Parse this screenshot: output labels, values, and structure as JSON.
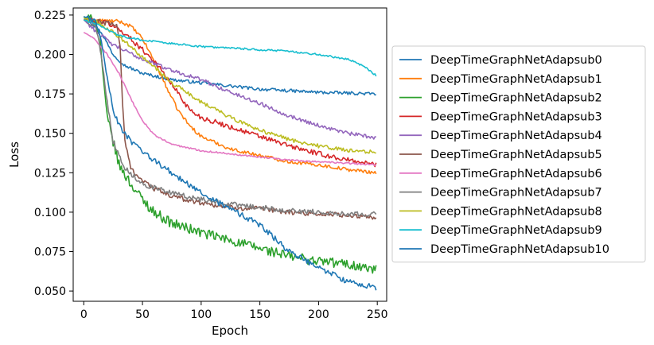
{
  "chart_data": {
    "type": "line",
    "title": "",
    "xlabel": "Epoch",
    "ylabel": "Loss",
    "xlim": [
      -9,
      258
    ],
    "ylim": [
      0.0435,
      0.2295
    ],
    "xticks": [
      0,
      50,
      100,
      150,
      200,
      250
    ],
    "yticks": [
      0.05,
      0.075,
      0.1,
      0.125,
      0.15,
      0.175,
      0.2,
      0.225
    ],
    "ytick_labels": [
      "0.050",
      "0.075",
      "0.100",
      "0.125",
      "0.150",
      "0.175",
      "0.200",
      "0.225"
    ],
    "grid": false,
    "legend_position": "outside-right",
    "n_epochs": 250,
    "series": [
      {
        "name": "DeepTimeGraphNetAdapsub0",
        "color": "#1f77b4",
        "noise": 0.001,
        "keypoints": [
          [
            0,
            0.224
          ],
          [
            5,
            0.221
          ],
          [
            15,
            0.214
          ],
          [
            25,
            0.2
          ],
          [
            35,
            0.193
          ],
          [
            50,
            0.188
          ],
          [
            75,
            0.184
          ],
          [
            100,
            0.182
          ],
          [
            150,
            0.178
          ],
          [
            200,
            0.176
          ],
          [
            250,
            0.175
          ]
        ]
      },
      {
        "name": "DeepTimeGraphNetAdapsub1",
        "color": "#ff7f0e",
        "noise": 0.0011,
        "keypoints": [
          [
            0,
            0.222
          ],
          [
            30,
            0.221
          ],
          [
            40,
            0.218
          ],
          [
            50,
            0.21
          ],
          [
            60,
            0.196
          ],
          [
            70,
            0.18
          ],
          [
            80,
            0.165
          ],
          [
            90,
            0.155
          ],
          [
            100,
            0.148
          ],
          [
            125,
            0.14
          ],
          [
            150,
            0.136
          ],
          [
            175,
            0.132
          ],
          [
            200,
            0.13
          ],
          [
            225,
            0.127
          ],
          [
            250,
            0.125
          ]
        ]
      },
      {
        "name": "DeepTimeGraphNetAdapsub2",
        "color": "#2ca02c",
        "noise": 0.0032,
        "keypoints": [
          [
            0,
            0.224
          ],
          [
            10,
            0.221
          ],
          [
            14,
            0.21
          ],
          [
            17,
            0.18
          ],
          [
            20,
            0.16
          ],
          [
            25,
            0.145
          ],
          [
            30,
            0.13
          ],
          [
            40,
            0.118
          ],
          [
            50,
            0.108
          ],
          [
            60,
            0.1
          ],
          [
            75,
            0.093
          ],
          [
            100,
            0.087
          ],
          [
            125,
            0.082
          ],
          [
            150,
            0.077
          ],
          [
            175,
            0.072
          ],
          [
            200,
            0.069
          ],
          [
            225,
            0.067
          ],
          [
            250,
            0.063
          ]
        ]
      },
      {
        "name": "DeepTimeGraphNetAdapsub3",
        "color": "#d62728",
        "noise": 0.0016,
        "keypoints": [
          [
            0,
            0.222
          ],
          [
            20,
            0.22
          ],
          [
            30,
            0.216
          ],
          [
            40,
            0.21
          ],
          [
            50,
            0.203
          ],
          [
            60,
            0.196
          ],
          [
            70,
            0.186
          ],
          [
            80,
            0.176
          ],
          [
            90,
            0.165
          ],
          [
            100,
            0.16
          ],
          [
            125,
            0.154
          ],
          [
            150,
            0.148
          ],
          [
            175,
            0.142
          ],
          [
            200,
            0.137
          ],
          [
            225,
            0.133
          ],
          [
            250,
            0.13
          ]
        ]
      },
      {
        "name": "DeepTimeGraphNetAdapsub4",
        "color": "#9467bd",
        "noise": 0.0012,
        "keypoints": [
          [
            0,
            0.222
          ],
          [
            10,
            0.215
          ],
          [
            25,
            0.206
          ],
          [
            50,
            0.197
          ],
          [
            75,
            0.19
          ],
          [
            100,
            0.184
          ],
          [
            125,
            0.176
          ],
          [
            150,
            0.169
          ],
          [
            175,
            0.161
          ],
          [
            200,
            0.155
          ],
          [
            225,
            0.15
          ],
          [
            250,
            0.147
          ]
        ]
      },
      {
        "name": "DeepTimeGraphNetAdapsub5",
        "color": "#8c564b",
        "noise": 0.0016,
        "keypoints": [
          [
            0,
            0.222
          ],
          [
            28,
            0.219
          ],
          [
            31,
            0.205
          ],
          [
            33,
            0.17
          ],
          [
            35,
            0.145
          ],
          [
            40,
            0.128
          ],
          [
            50,
            0.12
          ],
          [
            60,
            0.115
          ],
          [
            75,
            0.11
          ],
          [
            100,
            0.106
          ],
          [
            125,
            0.103
          ],
          [
            150,
            0.102
          ],
          [
            175,
            0.1
          ],
          [
            200,
            0.099
          ],
          [
            225,
            0.098
          ],
          [
            250,
            0.096
          ]
        ]
      },
      {
        "name": "DeepTimeGraphNetAdapsub6",
        "color": "#e377c2",
        "noise": 0.0005,
        "keypoints": [
          [
            0,
            0.214
          ],
          [
            5,
            0.212
          ],
          [
            10,
            0.209
          ],
          [
            20,
            0.2
          ],
          [
            30,
            0.188
          ],
          [
            40,
            0.172
          ],
          [
            50,
            0.158
          ],
          [
            60,
            0.149
          ],
          [
            75,
            0.143
          ],
          [
            100,
            0.139
          ],
          [
            125,
            0.137
          ],
          [
            150,
            0.135
          ],
          [
            175,
            0.133
          ],
          [
            200,
            0.132
          ],
          [
            225,
            0.131
          ],
          [
            250,
            0.13
          ]
        ]
      },
      {
        "name": "DeepTimeGraphNetAdapsub7",
        "color": "#7f7f7f",
        "noise": 0.0016,
        "keypoints": [
          [
            0,
            0.222
          ],
          [
            10,
            0.218
          ],
          [
            15,
            0.2
          ],
          [
            20,
            0.17
          ],
          [
            25,
            0.145
          ],
          [
            35,
            0.128
          ],
          [
            50,
            0.118
          ],
          [
            75,
            0.112
          ],
          [
            100,
            0.108
          ],
          [
            125,
            0.105
          ],
          [
            150,
            0.103
          ],
          [
            175,
            0.101
          ],
          [
            200,
            0.1
          ],
          [
            225,
            0.099
          ],
          [
            250,
            0.099
          ]
        ]
      },
      {
        "name": "DeepTimeGraphNetAdapsub8",
        "color": "#bcbd22",
        "noise": 0.0012,
        "keypoints": [
          [
            0,
            0.223
          ],
          [
            10,
            0.221
          ],
          [
            25,
            0.214
          ],
          [
            40,
            0.205
          ],
          [
            50,
            0.198
          ],
          [
            60,
            0.192
          ],
          [
            75,
            0.182
          ],
          [
            100,
            0.17
          ],
          [
            125,
            0.16
          ],
          [
            150,
            0.152
          ],
          [
            175,
            0.146
          ],
          [
            200,
            0.142
          ],
          [
            225,
            0.139
          ],
          [
            250,
            0.138
          ]
        ]
      },
      {
        "name": "DeepTimeGraphNetAdapsub9",
        "color": "#17becf",
        "noise": 0.0006,
        "keypoints": [
          [
            0,
            0.222
          ],
          [
            15,
            0.218
          ],
          [
            30,
            0.212
          ],
          [
            50,
            0.209
          ],
          [
            75,
            0.207
          ],
          [
            100,
            0.205
          ],
          [
            125,
            0.204
          ],
          [
            150,
            0.203
          ],
          [
            175,
            0.202
          ],
          [
            200,
            0.2
          ],
          [
            225,
            0.197
          ],
          [
            240,
            0.192
          ],
          [
            250,
            0.186
          ]
        ]
      },
      {
        "name": "DeepTimeGraphNetAdapsub10",
        "color": "#1f77b4",
        "noise": 0.0018,
        "keypoints": [
          [
            0,
            0.224
          ],
          [
            10,
            0.221
          ],
          [
            15,
            0.21
          ],
          [
            20,
            0.185
          ],
          [
            25,
            0.165
          ],
          [
            30,
            0.155
          ],
          [
            40,
            0.145
          ],
          [
            50,
            0.138
          ],
          [
            75,
            0.125
          ],
          [
            100,
            0.112
          ],
          [
            125,
            0.102
          ],
          [
            150,
            0.092
          ],
          [
            175,
            0.075
          ],
          [
            200,
            0.065
          ],
          [
            225,
            0.056
          ],
          [
            250,
            0.052
          ]
        ]
      }
    ]
  }
}
